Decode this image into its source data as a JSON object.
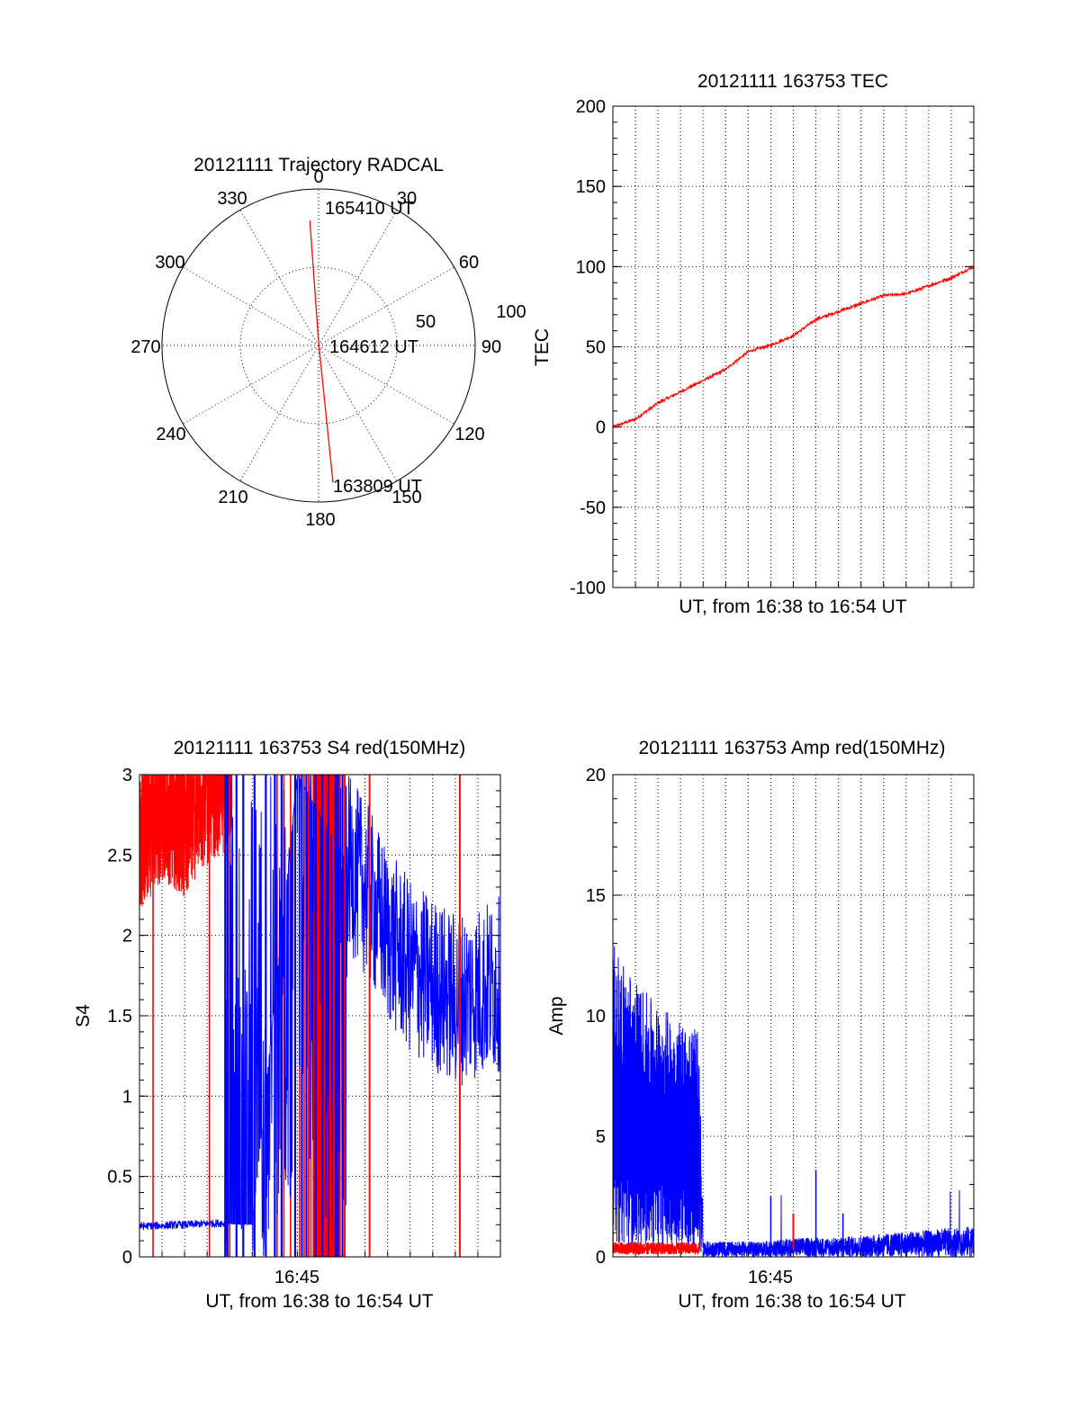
{
  "colors": {
    "red": "#ff0000",
    "blue": "#0000ff",
    "axis": "#000000"
  },
  "chart_data": [
    {
      "id": "trajectory",
      "type": "polar",
      "title": "20121111 Trajectory RADCAL",
      "angle_labels": [
        "0",
        "30",
        "60",
        "90",
        "120",
        "150",
        "180",
        "210",
        "240",
        "270",
        "300",
        "330"
      ],
      "radius_labels": [
        "50",
        "100"
      ],
      "rlim": [
        0,
        100
      ],
      "grid": true,
      "series": [
        {
          "color": "red",
          "points": [
            [
              356,
              80
            ],
            [
              0,
              2
            ],
            [
              174,
              88
            ]
          ]
        }
      ],
      "annotations": [
        {
          "text": "165410 UT",
          "az": 356,
          "r": 80
        },
        {
          "text": "164612 UT",
          "az": 0,
          "r": 2
        },
        {
          "text": "163809 UT",
          "az": 174,
          "r": 88
        }
      ]
    },
    {
      "id": "tec",
      "type": "line",
      "title": "20121111 163753 TEC",
      "xlabel": "UT, from 16:38 to 16:54 UT",
      "ylabel": "TEC",
      "xlim": [
        "16:38",
        "16:54"
      ],
      "ylim": [
        -100,
        200
      ],
      "yticks": [
        "-100",
        "-50",
        "0",
        "50",
        "100",
        "150",
        "200"
      ],
      "xticks": [],
      "grid": true,
      "series": [
        {
          "color": "red",
          "x": [
            "16:38",
            "16:39",
            "16:40",
            "16:41",
            "16:42",
            "16:43",
            "16:44",
            "16:45",
            "16:46",
            "16:47",
            "16:48",
            "16:49",
            "16:50",
            "16:51",
            "16:52",
            "16:53",
            "16:54"
          ],
          "y": [
            0,
            5,
            15,
            22,
            29,
            36,
            47,
            51,
            57,
            67,
            72,
            77,
            82,
            83,
            88,
            93,
            100
          ]
        }
      ]
    },
    {
      "id": "s4",
      "type": "line",
      "title": "20121111 163753 S4 red(150MHz)",
      "xlabel": "UT, from 16:38 to 16:54 UT",
      "ylabel": "S4",
      "xlim": [
        "16:38",
        "16:54"
      ],
      "ylim": [
        0,
        3
      ],
      "yticks": [
        "0",
        "0.5",
        "1",
        "1.5",
        "2",
        "2.5",
        "3"
      ],
      "xticks": [
        "16:45"
      ],
      "grid": true,
      "series": [
        {
          "color": "red",
          "x": [
            "16:38",
            "16:39",
            "16:40",
            "16:41",
            "16:42",
            "16:43",
            "16:44",
            "16:45",
            "16:46",
            "16:47"
          ],
          "y": [
            2.5,
            2.7,
            2.6,
            2.8,
            2.9,
            3,
            2.9,
            3,
            3,
            3
          ]
        },
        {
          "color": "blue",
          "x": [
            "16:38",
            "16:40",
            "16:41.5",
            "16:43",
            "16:45",
            "16:47",
            "16:48",
            "16:49",
            "16:50",
            "16:51",
            "16:52",
            "16:53",
            "16:54"
          ],
          "y": [
            0.19,
            0.2,
            0.21,
            0.2,
            3,
            2.5,
            2.3,
            2.0,
            1.8,
            1.7,
            1.6,
            1.65,
            1.7
          ]
        }
      ]
    },
    {
      "id": "amp",
      "type": "line",
      "title": "20121111 163753 Amp red(150MHz)",
      "xlabel": "UT, from 16:38 to 16:54 UT",
      "ylabel": "Amp",
      "xlim": [
        "16:38",
        "16:54"
      ],
      "ylim": [
        0,
        20
      ],
      "yticks": [
        "0",
        "5",
        "10",
        "15",
        "20"
      ],
      "xticks": [
        "16:45"
      ],
      "grid": true,
      "series": [
        {
          "color": "blue",
          "x": [
            "16:38",
            "16:39",
            "16:40",
            "16:41",
            "16:41.8",
            "16:42",
            "16:45",
            "16:46",
            "16:48",
            "16:50",
            "16:54"
          ],
          "y": [
            11,
            9.5,
            8.5,
            8,
            7.5,
            0.4,
            0.4,
            0.5,
            0.5,
            0.6,
            0.8
          ]
        },
        {
          "color": "red",
          "x": [
            "16:38",
            "16:40",
            "16:41.8",
            "16:44"
          ],
          "y": [
            0.35,
            0.35,
            0.35,
            0.3
          ]
        }
      ]
    }
  ]
}
